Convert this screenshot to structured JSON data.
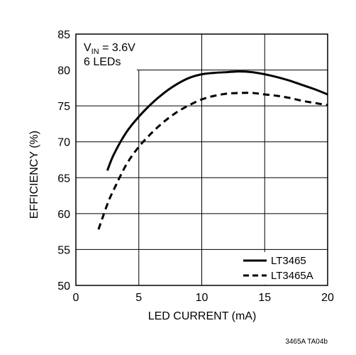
{
  "chart_data": {
    "type": "line",
    "xlabel": "LED CURRENT (mA)",
    "ylabel": "EFFICIENCY (%)",
    "xlim": [
      0,
      20
    ],
    "ylim": [
      50,
      85
    ],
    "x_ticks": [
      0,
      5,
      10,
      15,
      20
    ],
    "y_ticks": [
      50,
      55,
      60,
      65,
      70,
      75,
      80,
      85
    ],
    "grid": true,
    "legend_position": "bottom-right",
    "annotation": {
      "vin_prefix": "V",
      "vin_subscript": "IN",
      "vin_value": " = 3.6V",
      "leds": "6 LEDs"
    },
    "figure_id": "3465A TA04b",
    "series": [
      {
        "name": "LT3465",
        "line_style": "solid",
        "color": "#000000",
        "x": [
          2.5,
          3,
          4,
          5,
          6,
          7,
          8,
          9,
          10,
          11,
          12,
          13,
          14,
          15,
          16,
          17,
          18,
          19,
          20
        ],
        "y": [
          66.0,
          68.2,
          71.3,
          73.5,
          75.3,
          76.8,
          78.0,
          78.9,
          79.4,
          79.6,
          79.7,
          79.8,
          79.7,
          79.4,
          79.0,
          78.5,
          77.9,
          77.3,
          76.6
        ]
      },
      {
        "name": "LT3465A",
        "line_style": "dashed",
        "color": "#000000",
        "x": [
          1.8,
          2.5,
          3,
          4,
          5,
          6,
          7,
          8,
          9,
          10,
          11,
          12,
          13,
          14,
          15,
          16,
          17,
          18,
          19,
          20
        ],
        "y": [
          57.8,
          61.3,
          63.3,
          66.8,
          69.3,
          71.2,
          72.8,
          74.1,
          75.1,
          75.9,
          76.4,
          76.7,
          76.8,
          76.8,
          76.6,
          76.4,
          76.1,
          75.7,
          75.4,
          75.1
        ]
      }
    ]
  }
}
